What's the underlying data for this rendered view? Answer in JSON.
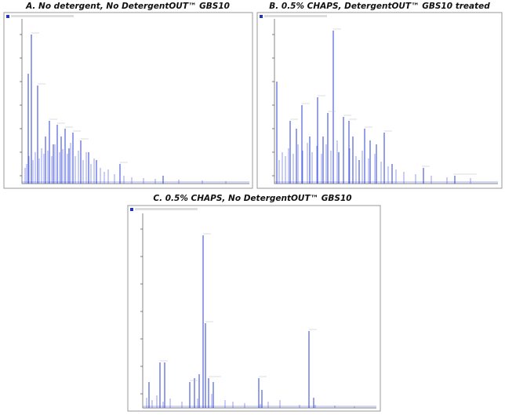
{
  "panels": [
    {
      "title": "A. No detergent, No DetergentOUT™ GBS10"
    },
    {
      "title": "B. 0.5% CHAPS, DetergentOUT™ GBS10 treated"
    },
    {
      "title": "C. 0.5% CHAPS, No DetergentOUT™ GBS10"
    }
  ]
}
